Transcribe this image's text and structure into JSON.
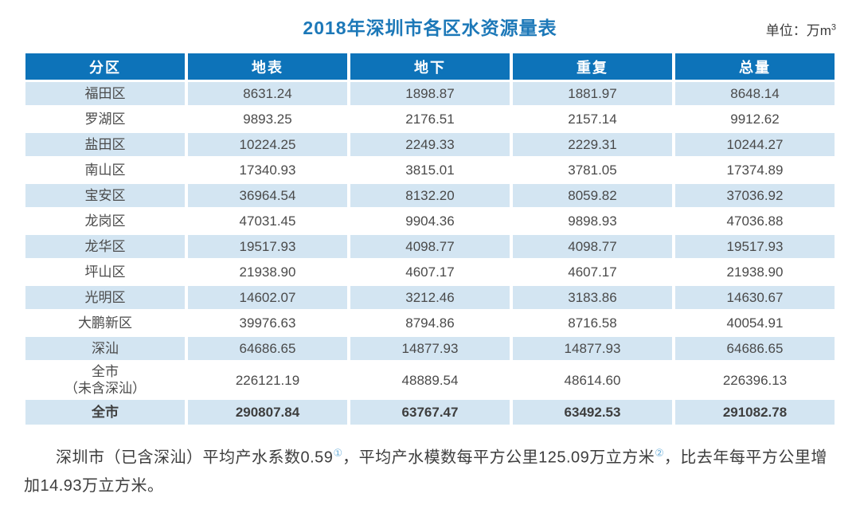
{
  "header": {
    "unit_prefix": "单位：万m",
    "unit_sup": "3"
  },
  "chart_data": {
    "type": "table",
    "title": "2018年深圳市各区水资源量表",
    "unit": "万m³",
    "columns": [
      "分区",
      "地表",
      "地下",
      "重复",
      "总量"
    ],
    "rows": [
      [
        "福田区",
        "8631.24",
        "1898.87",
        "1881.97",
        "8648.14"
      ],
      [
        "罗湖区",
        "9893.25",
        "2176.51",
        "2157.14",
        "9912.62"
      ],
      [
        "盐田区",
        "10224.25",
        "2249.33",
        "2229.31",
        "10244.27"
      ],
      [
        "南山区",
        "17340.93",
        "3815.01",
        "3781.05",
        "17374.89"
      ],
      [
        "宝安区",
        "36964.54",
        "8132.20",
        "8059.82",
        "37036.92"
      ],
      [
        "龙岗区",
        "47031.45",
        "9904.36",
        "9898.93",
        "47036.88"
      ],
      [
        "龙华区",
        "19517.93",
        "4098.77",
        "4098.77",
        "19517.93"
      ],
      [
        "坪山区",
        "21938.90",
        "4607.17",
        "4607.17",
        "21938.90"
      ],
      [
        "光明区",
        "14602.07",
        "3212.46",
        "3183.86",
        "14630.67"
      ],
      [
        "大鹏新区",
        "39976.63",
        "8794.86",
        "8716.58",
        "40054.91"
      ],
      [
        "深汕",
        "64686.65",
        "14877.93",
        "14877.93",
        "64686.65"
      ],
      [
        "全市\n（未含深汕）",
        "226121.19",
        "48889.54",
        "48614.60",
        "226396.13"
      ],
      [
        "全市",
        "290807.84",
        "63767.47",
        "63492.53",
        "291082.78"
      ]
    ],
    "total_row_index": 12,
    "layout": {
      "stripe_pattern": "even rows light blue, odd rows white",
      "alignment": "center"
    }
  },
  "footnote": {
    "seg1": "深圳市（已含深汕）平均产水系数0.59",
    "ref1": "①",
    "seg2": "，平均产水模数每平方公里125.09万立方米",
    "ref2": "②",
    "seg3": "，比去年每平方公里增加14.93万立方米。"
  },
  "colors": {
    "header_blue": "#0d73b9",
    "stripe_blue": "#d3e5f2",
    "title_blue": "#1c78b8",
    "ref_blue": "#6fb0da",
    "text_dark": "#4a4a4a"
  }
}
